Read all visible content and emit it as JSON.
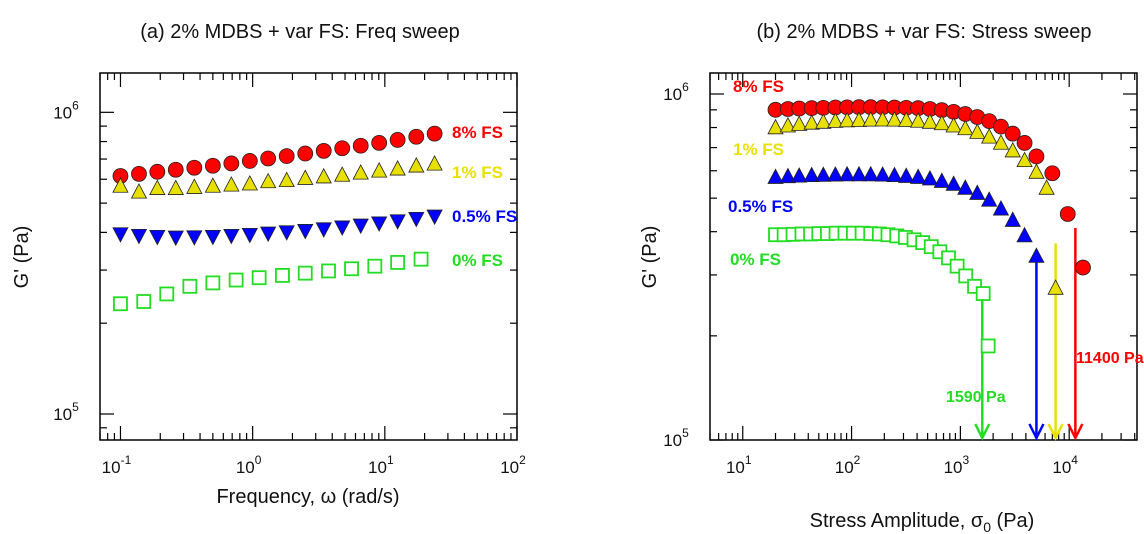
{
  "chart_data": [
    {
      "type": "scatter",
      "title": "(a) 2% MDBS + var FS: Freq sweep",
      "xlabel": "Frequency, ω (rad/s)",
      "ylabel": "G' (Pa)",
      "xscale": "log",
      "yscale": "log",
      "xlim": [
        0.07,
        100
      ],
      "ylim": [
        82000,
        1350000
      ],
      "xticks": [
        "10",
        "10",
        "10",
        "10"
      ],
      "xtick_exps": [
        "-1",
        "0",
        "1",
        "2"
      ],
      "yticks": [
        "10",
        "10"
      ],
      "ytick_exps": [
        "5",
        "6"
      ],
      "grid": false,
      "series": [
        {
          "name": "8% FS",
          "color": "#ff0000",
          "marker": "circle-filled",
          "x": [
            0.1,
            0.138,
            0.19,
            0.262,
            0.362,
            0.5,
            0.69,
            0.952,
            1.31,
            1.81,
            2.5,
            3.45,
            4.76,
            6.57,
            9.06,
            12.5,
            17.3,
            23.8
          ],
          "y": [
            615000,
            625000,
            635000,
            645000,
            655000,
            665000,
            677000,
            690000,
            703000,
            716000,
            730000,
            745000,
            760000,
            775000,
            792000,
            810000,
            830000,
            850000
          ]
        },
        {
          "name": "1% FS",
          "color": "#e8e000",
          "marker": "triangle-up-filled",
          "x": [
            0.1,
            0.138,
            0.19,
            0.262,
            0.362,
            0.5,
            0.69,
            0.952,
            1.31,
            1.81,
            2.5,
            3.45,
            4.76,
            6.57,
            9.06,
            12.5,
            17.3,
            23.8
          ],
          "y": [
            570000,
            545000,
            560000,
            560000,
            565000,
            570000,
            575000,
            580000,
            590000,
            595000,
            605000,
            612000,
            620000,
            630000,
            640000,
            650000,
            665000,
            675000
          ]
        },
        {
          "name": "0.5% FS",
          "color": "#0000ff",
          "marker": "triangle-down-filled",
          "x": [
            0.1,
            0.138,
            0.19,
            0.262,
            0.362,
            0.5,
            0.69,
            0.952,
            1.31,
            1.81,
            2.5,
            3.45,
            4.76,
            6.57,
            9.06,
            12.5,
            17.3,
            23.8
          ],
          "y": [
            395000,
            390000,
            387000,
            385000,
            386000,
            387000,
            390000,
            393000,
            397000,
            401000,
            405000,
            410000,
            416000,
            422000,
            429000,
            436000,
            444000,
            452000
          ]
        },
        {
          "name": "0% FS",
          "color": "#22dd22",
          "marker": "square-open",
          "x": [
            0.1,
            0.15,
            0.224,
            0.335,
            0.5,
            0.75,
            1.12,
            1.68,
            2.5,
            3.75,
            5.6,
            8.4,
            12.5,
            18.8
          ],
          "y": [
            232000,
            236000,
            250000,
            265000,
            272000,
            278000,
            283000,
            288000,
            293000,
            298000,
            303000,
            309000,
            318000,
            326000
          ]
        }
      ]
    },
    {
      "type": "scatter",
      "title": "(b) 2% MDBS + var FS: Stress sweep",
      "xlabel": "Stress Amplitude, σ",
      "xlabel_sub": "0",
      "xlabel_suffix": " (Pa)",
      "ylabel": "G' (Pa)",
      "xscale": "log",
      "yscale": "log",
      "xlim": [
        5,
        42000
      ],
      "ylim": [
        100000,
        1150000
      ],
      "xticks": [
        "10",
        "10",
        "10",
        "10"
      ],
      "xtick_exps": [
        "1",
        "2",
        "3",
        "4"
      ],
      "yticks": [
        "10",
        "10"
      ],
      "ytick_exps": [
        "5",
        "6"
      ],
      "grid": false,
      "series": [
        {
          "name": "8% FS",
          "color": "#ff0000",
          "marker": "circle-filled",
          "x": [
            20,
            26,
            33,
            43,
            55,
            71,
            91,
            117,
            150,
            193,
            248,
            318,
            409,
            525,
            675,
            867,
            1110,
            1430,
            1840,
            2360,
            3030,
            3890,
            5000,
            7000,
            9700,
            13400
          ],
          "y": [
            900000,
            905000,
            908000,
            910000,
            912000,
            914000,
            915000,
            916000,
            916000,
            915000,
            914000,
            912000,
            910000,
            905000,
            898000,
            888000,
            875000,
            858000,
            835000,
            805000,
            768000,
            722000,
            660000,
            590000,
            450000,
            315000
          ]
        },
        {
          "name": "1% FS",
          "color": "#e8e000",
          "marker": "triangle-up-filled",
          "x": [
            20,
            26,
            33,
            43,
            55,
            71,
            91,
            117,
            150,
            193,
            248,
            318,
            409,
            525,
            675,
            867,
            1110,
            1430,
            1840,
            2360,
            3030,
            3890,
            5000,
            6200,
            7500
          ],
          "y": [
            800000,
            810000,
            818000,
            825000,
            830000,
            835000,
            838000,
            840000,
            842000,
            843000,
            842000,
            840000,
            836000,
            830000,
            822000,
            810000,
            795000,
            776000,
            752000,
            722000,
            686000,
            643000,
            595000,
            535000,
            275000
          ]
        },
        {
          "name": "0.5% FS",
          "color": "#0000ff",
          "marker": "triangle-up-filled",
          "x": [
            20,
            26,
            33,
            43,
            55,
            71,
            91,
            117,
            150,
            193,
            248,
            318,
            409,
            525,
            675,
            867,
            1110,
            1430,
            1840,
            2360,
            3030,
            3890,
            5000
          ],
          "y": [
            575000,
            578000,
            580000,
            582000,
            583000,
            584000,
            585000,
            585000,
            585000,
            584000,
            582000,
            579000,
            575000,
            569000,
            560000,
            549000,
            535000,
            517000,
            494000,
            466000,
            432000,
            390000,
            340000
          ]
        },
        {
          "name": "0% FS",
          "color": "#22dd22",
          "marker": "square-open",
          "x": [
            20,
            24,
            29,
            35,
            42,
            50,
            60,
            72,
            87,
            104,
            125,
            150,
            180,
            216,
            260,
            312,
            375,
            450,
            540,
            648,
            778,
            934,
            1120,
            1350,
            1620,
            1800
          ],
          "y": [
            392000,
            392000,
            393000,
            394000,
            394000,
            395000,
            395000,
            396000,
            396000,
            396000,
            396000,
            395000,
            394000,
            392000,
            389000,
            385000,
            379000,
            372000,
            362000,
            350000,
            336000,
            318000,
            298000,
            278000,
            265000,
            187000
          ]
        }
      ],
      "annotations": [
        {
          "text": "1590 Pa",
          "x": 1590,
          "color": "#22dd22"
        },
        {
          "text": "11400 Pa",
          "x": 11400,
          "color": "#ff0000"
        }
      ],
      "arrows": [
        {
          "x": 1590,
          "color": "#22dd22",
          "y_from": 260000
        },
        {
          "x": 5000,
          "color": "#0000ff",
          "y_from": 330000
        },
        {
          "x": 7500,
          "color": "#e8e000",
          "y_from": 370000
        },
        {
          "x": 11400,
          "color": "#ff0000",
          "y_from": 410000
        }
      ]
    }
  ]
}
